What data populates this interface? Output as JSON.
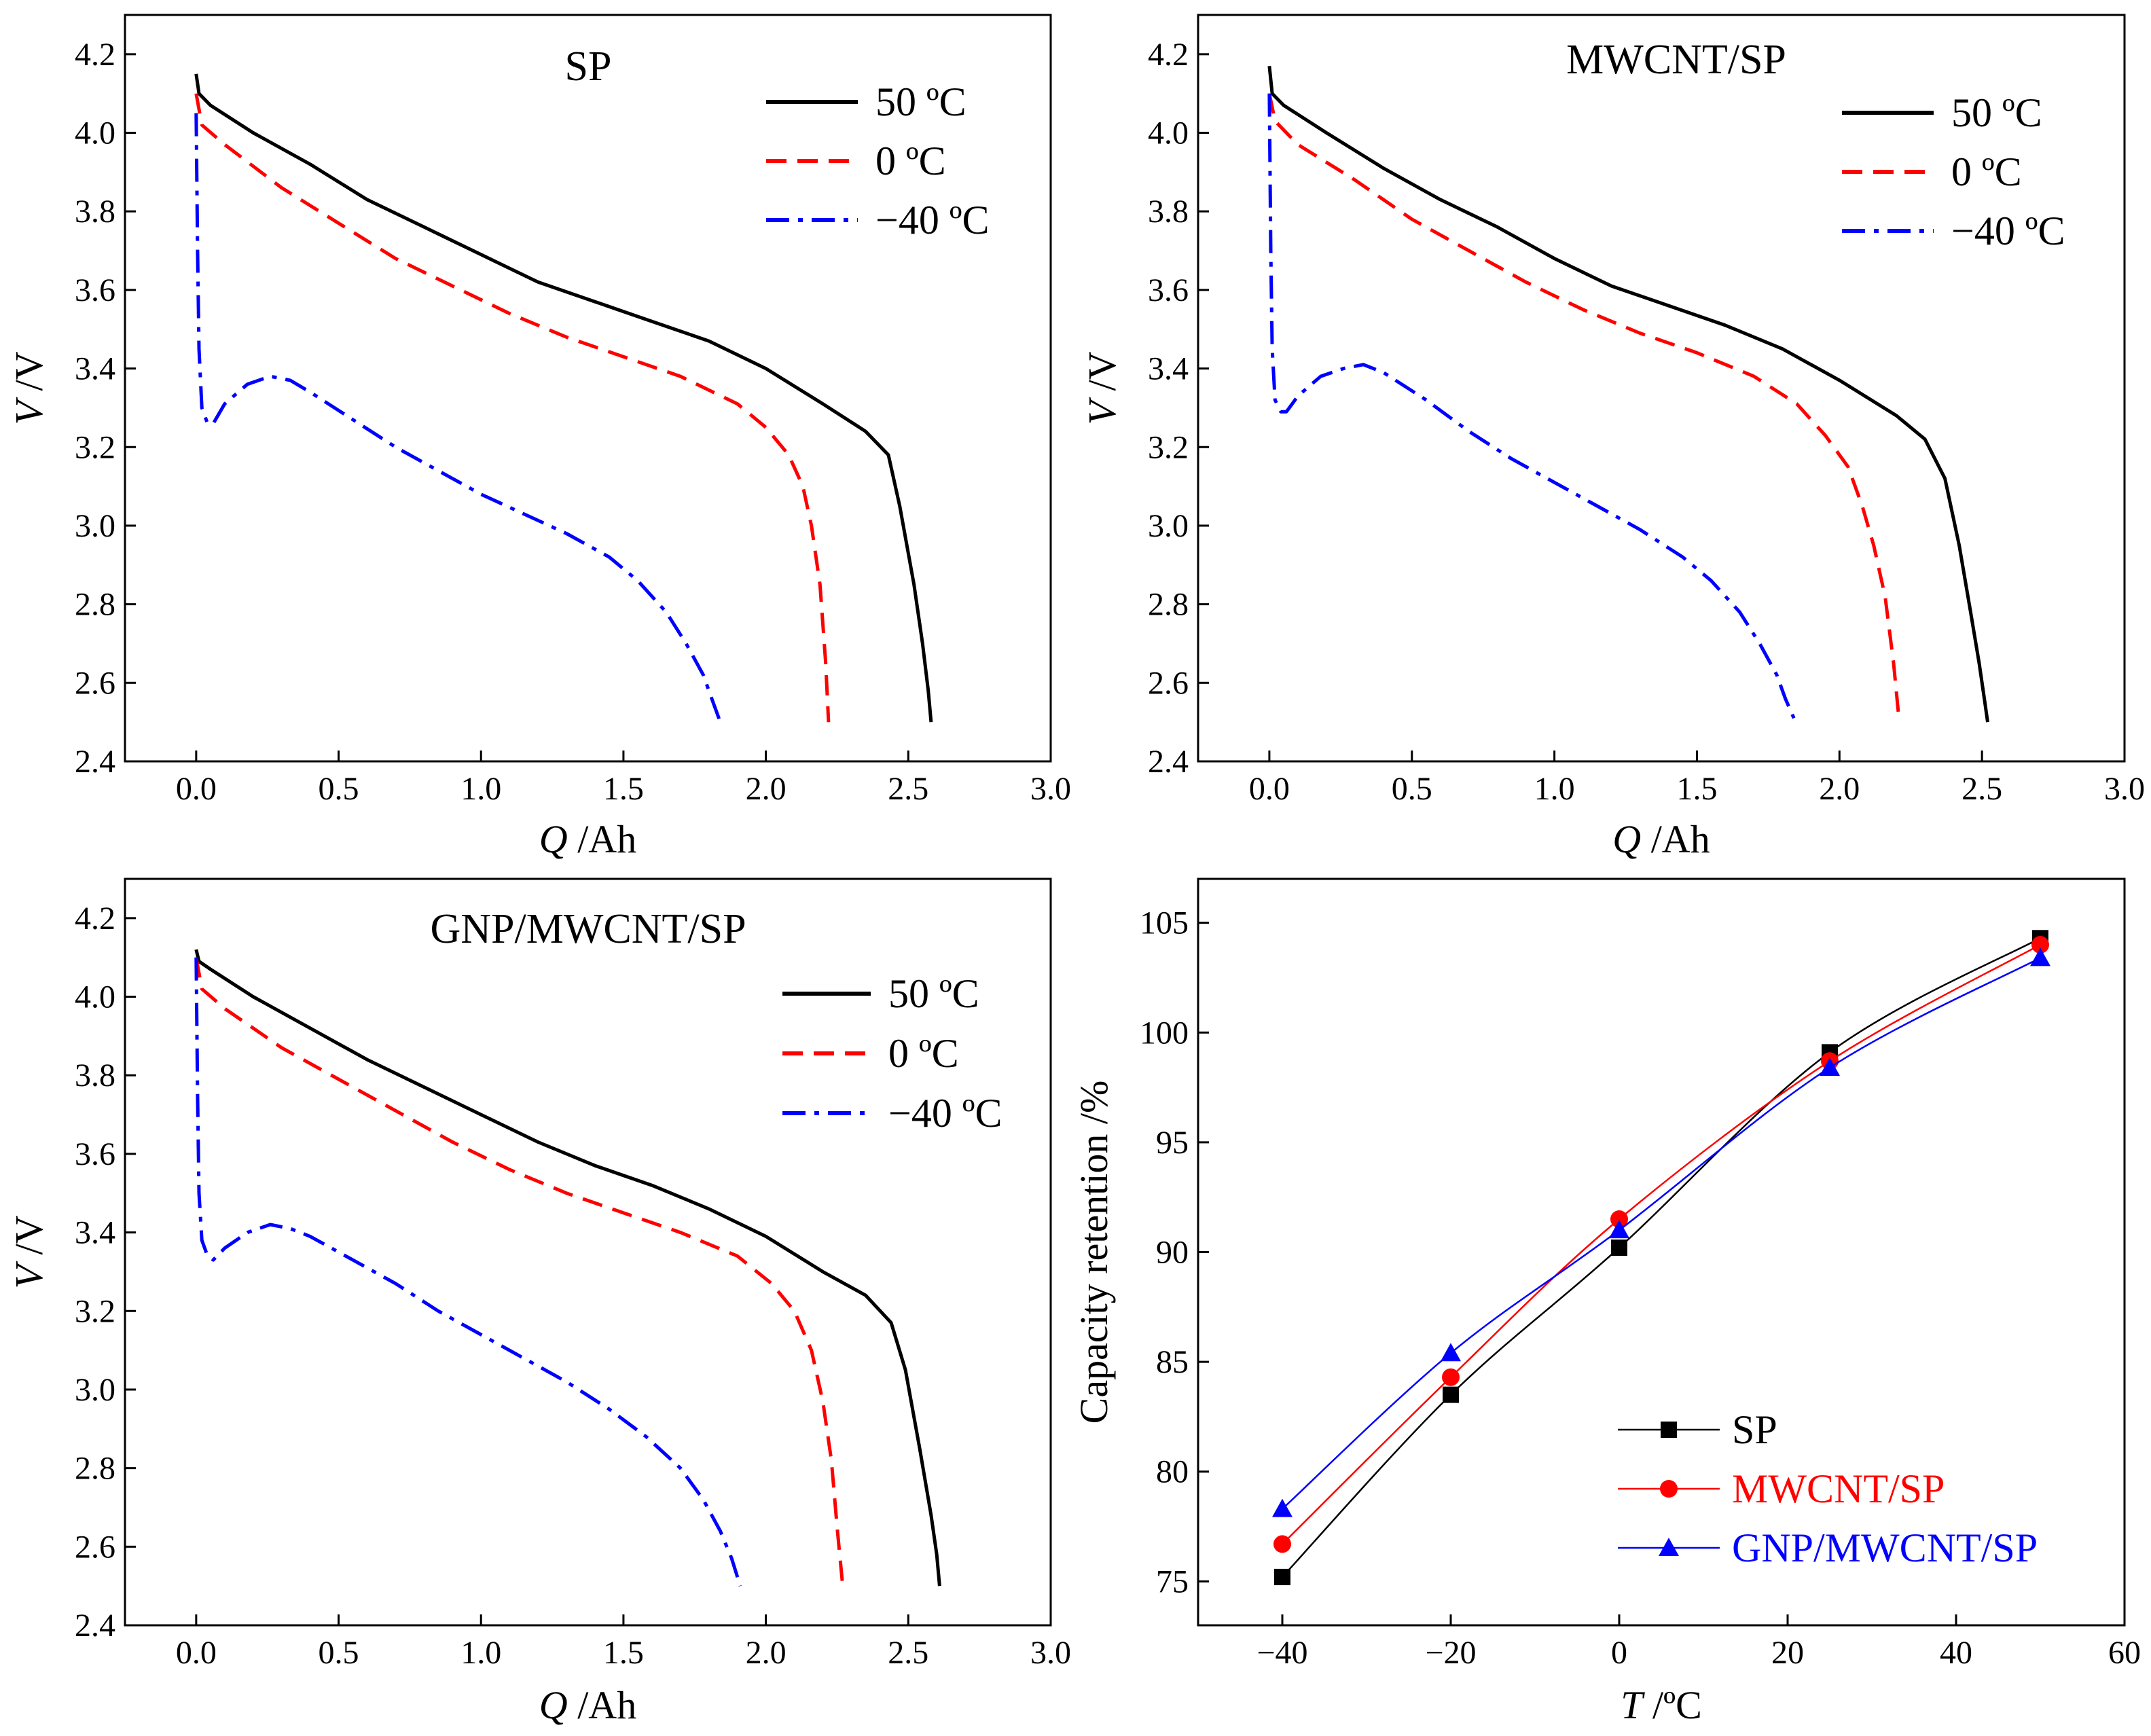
{
  "chart_data": [
    {
      "type": "line",
      "title": "SP",
      "xlabel_var": "Q",
      "xlabel_unit": " /Ah",
      "ylabel_var": "V",
      "ylabel_unit": " /V",
      "xlim": [
        -0.25,
        3.0
      ],
      "ylim": [
        2.4,
        4.3
      ],
      "xticks": [
        "0.0",
        "0.5",
        "1.0",
        "1.5",
        "2.0",
        "2.5",
        "3.0"
      ],
      "yticks": [
        "2.4",
        "2.6",
        "2.8",
        "3.0",
        "3.2",
        "3.4",
        "3.6",
        "3.8",
        "4.0",
        "4.2"
      ],
      "legend_position": "top-right",
      "series": [
        {
          "name": "50 ºC",
          "color": "#000000",
          "dash": "solid",
          "x": [
            0,
            0.01,
            0.05,
            0.2,
            0.4,
            0.6,
            0.8,
            1.0,
            1.2,
            1.4,
            1.6,
            1.8,
            2.0,
            2.2,
            2.35,
            2.43,
            2.47,
            2.52,
            2.55,
            2.57,
            2.58
          ],
          "y": [
            4.15,
            4.1,
            4.07,
            4.0,
            3.92,
            3.83,
            3.76,
            3.69,
            3.62,
            3.57,
            3.52,
            3.47,
            3.4,
            3.31,
            3.24,
            3.18,
            3.05,
            2.85,
            2.7,
            2.58,
            2.5
          ]
        },
        {
          "name": "0 ºC",
          "color": "#ff0000",
          "dash": "dashed",
          "x": [
            0,
            0.02,
            0.1,
            0.3,
            0.5,
            0.7,
            0.9,
            1.1,
            1.3,
            1.5,
            1.7,
            1.9,
            2.0,
            2.08,
            2.13,
            2.16,
            2.19,
            2.21,
            2.22
          ],
          "y": [
            4.1,
            4.02,
            3.97,
            3.86,
            3.77,
            3.68,
            3.61,
            3.54,
            3.48,
            3.43,
            3.38,
            3.31,
            3.25,
            3.18,
            3.1,
            3.0,
            2.85,
            2.65,
            2.5
          ]
        },
        {
          "name": "−40 ºC",
          "color": "#0000ff",
          "dash": "dashdot",
          "x": [
            0,
            0.005,
            0.01,
            0.02,
            0.04,
            0.06,
            0.1,
            0.18,
            0.26,
            0.33,
            0.4,
            0.55,
            0.7,
            0.85,
            1.0,
            1.15,
            1.3,
            1.45,
            1.55,
            1.65,
            1.72,
            1.78,
            1.81,
            1.84
          ],
          "y": [
            4.05,
            3.7,
            3.45,
            3.3,
            3.26,
            3.26,
            3.31,
            3.36,
            3.38,
            3.37,
            3.34,
            3.27,
            3.2,
            3.14,
            3.08,
            3.03,
            2.98,
            2.92,
            2.86,
            2.78,
            2.7,
            2.62,
            2.56,
            2.5
          ]
        }
      ]
    },
    {
      "type": "line",
      "title": "MWCNT/SP",
      "xlabel_var": "Q",
      "xlabel_unit": " /Ah",
      "ylabel_var": "V",
      "ylabel_unit": " /V",
      "xlim": [
        -0.25,
        3.0
      ],
      "ylim": [
        2.4,
        4.3
      ],
      "xticks": [
        "0.0",
        "0.5",
        "1.0",
        "1.5",
        "2.0",
        "2.5",
        "3.0"
      ],
      "yticks": [
        "2.4",
        "2.6",
        "2.8",
        "3.0",
        "3.2",
        "3.4",
        "3.6",
        "3.8",
        "4.0",
        "4.2"
      ],
      "legend_position": "top-right",
      "series": [
        {
          "name": "50 ºC",
          "color": "#000000",
          "dash": "solid",
          "x": [
            0,
            0.01,
            0.05,
            0.2,
            0.4,
            0.6,
            0.8,
            1.0,
            1.2,
            1.4,
            1.6,
            1.8,
            2.0,
            2.2,
            2.3,
            2.37,
            2.42,
            2.46,
            2.49,
            2.51,
            2.52
          ],
          "y": [
            4.17,
            4.1,
            4.07,
            4.0,
            3.91,
            3.83,
            3.76,
            3.68,
            3.61,
            3.56,
            3.51,
            3.45,
            3.37,
            3.28,
            3.22,
            3.12,
            2.95,
            2.78,
            2.65,
            2.55,
            2.5
          ]
        },
        {
          "name": "0 ºC",
          "color": "#ff0000",
          "dash": "dashed",
          "x": [
            0,
            0.02,
            0.1,
            0.3,
            0.5,
            0.7,
            0.9,
            1.1,
            1.3,
            1.5,
            1.7,
            1.85,
            1.95,
            2.03,
            2.08,
            2.12,
            2.16,
            2.19,
            2.21
          ],
          "y": [
            4.1,
            4.03,
            3.97,
            3.88,
            3.78,
            3.7,
            3.62,
            3.55,
            3.49,
            3.44,
            3.38,
            3.31,
            3.23,
            3.15,
            3.05,
            2.95,
            2.82,
            2.65,
            2.5
          ]
        },
        {
          "name": "−40 ºC",
          "color": "#0000ff",
          "dash": "dashdot",
          "x": [
            0,
            0.005,
            0.01,
            0.02,
            0.04,
            0.06,
            0.1,
            0.18,
            0.26,
            0.33,
            0.4,
            0.55,
            0.7,
            0.85,
            1.0,
            1.15,
            1.3,
            1.45,
            1.55,
            1.65,
            1.72,
            1.78,
            1.81,
            1.84
          ],
          "y": [
            4.1,
            3.7,
            3.45,
            3.32,
            3.29,
            3.29,
            3.33,
            3.38,
            3.4,
            3.41,
            3.39,
            3.32,
            3.24,
            3.17,
            3.11,
            3.05,
            2.99,
            2.92,
            2.86,
            2.78,
            2.7,
            2.62,
            2.56,
            2.51
          ]
        }
      ]
    },
    {
      "type": "line",
      "title": "GNP/MWCNT/SP",
      "xlabel_var": "Q",
      "xlabel_unit": " /Ah",
      "ylabel_var": "V",
      "ylabel_unit": " /V",
      "xlim": [
        -0.25,
        3.0
      ],
      "ylim": [
        2.4,
        4.3
      ],
      "xticks": [
        "0.0",
        "0.5",
        "1.0",
        "1.5",
        "2.0",
        "2.5",
        "3.0"
      ],
      "yticks": [
        "2.4",
        "2.6",
        "2.8",
        "3.0",
        "3.2",
        "3.4",
        "3.6",
        "3.8",
        "4.0",
        "4.2"
      ],
      "legend_position": "upper-right",
      "series": [
        {
          "name": "50 ºC",
          "color": "#000000",
          "dash": "solid",
          "x": [
            0,
            0.01,
            0.05,
            0.2,
            0.4,
            0.6,
            0.8,
            1.0,
            1.2,
            1.4,
            1.6,
            1.8,
            2.0,
            2.2,
            2.35,
            2.44,
            2.49,
            2.54,
            2.58,
            2.6,
            2.61
          ],
          "y": [
            4.12,
            4.09,
            4.07,
            4.0,
            3.92,
            3.84,
            3.77,
            3.7,
            3.63,
            3.57,
            3.52,
            3.46,
            3.39,
            3.3,
            3.24,
            3.17,
            3.05,
            2.85,
            2.68,
            2.58,
            2.5
          ]
        },
        {
          "name": "0 ºC",
          "color": "#ff0000",
          "dash": "dashed",
          "x": [
            0,
            0.02,
            0.1,
            0.3,
            0.5,
            0.7,
            0.9,
            1.1,
            1.3,
            1.5,
            1.7,
            1.9,
            2.02,
            2.1,
            2.16,
            2.2,
            2.23,
            2.25,
            2.27
          ],
          "y": [
            4.1,
            4.02,
            3.97,
            3.87,
            3.79,
            3.71,
            3.63,
            3.56,
            3.5,
            3.45,
            3.4,
            3.34,
            3.27,
            3.2,
            3.1,
            2.97,
            2.82,
            2.65,
            2.5
          ]
        },
        {
          "name": "−40 ºC",
          "color": "#0000ff",
          "dash": "dashdot",
          "x": [
            0,
            0.005,
            0.01,
            0.02,
            0.04,
            0.06,
            0.1,
            0.18,
            0.26,
            0.33,
            0.4,
            0.55,
            0.7,
            0.85,
            1.0,
            1.15,
            1.3,
            1.45,
            1.58,
            1.7,
            1.78,
            1.84,
            1.88,
            1.91
          ],
          "y": [
            4.1,
            3.75,
            3.5,
            3.38,
            3.34,
            3.33,
            3.36,
            3.4,
            3.42,
            3.41,
            3.39,
            3.33,
            3.27,
            3.2,
            3.14,
            3.08,
            3.02,
            2.95,
            2.88,
            2.8,
            2.72,
            2.64,
            2.57,
            2.5
          ]
        }
      ]
    },
    {
      "type": "line",
      "title": "",
      "xlabel_var": "T",
      "xlabel_unit": " /ºC",
      "ylabel": "Capacity retention /%",
      "xlim": [
        -50,
        60
      ],
      "ylim": [
        73,
        107
      ],
      "xticks": [
        "−40",
        "−20",
        "0",
        "20",
        "40",
        "60"
      ],
      "yticks": [
        "75",
        "80",
        "85",
        "90",
        "95",
        "100",
        "105"
      ],
      "legend_position": "bottom-right",
      "x": [
        -40,
        -20,
        0,
        25,
        50
      ],
      "series": [
        {
          "name": "SP",
          "color": "#000000",
          "marker": "square",
          "values": [
            75.2,
            83.5,
            90.2,
            99.1,
            104.3
          ]
        },
        {
          "name": "MWCNT/SP",
          "color": "#ff0000",
          "marker": "circle",
          "values": [
            76.7,
            84.3,
            91.5,
            98.7,
            104.0
          ]
        },
        {
          "name": "GNP/MWCNT/SP",
          "color": "#0000ff",
          "marker": "triangle",
          "values": [
            78.3,
            85.4,
            91.0,
            98.4,
            103.4
          ]
        }
      ]
    }
  ]
}
